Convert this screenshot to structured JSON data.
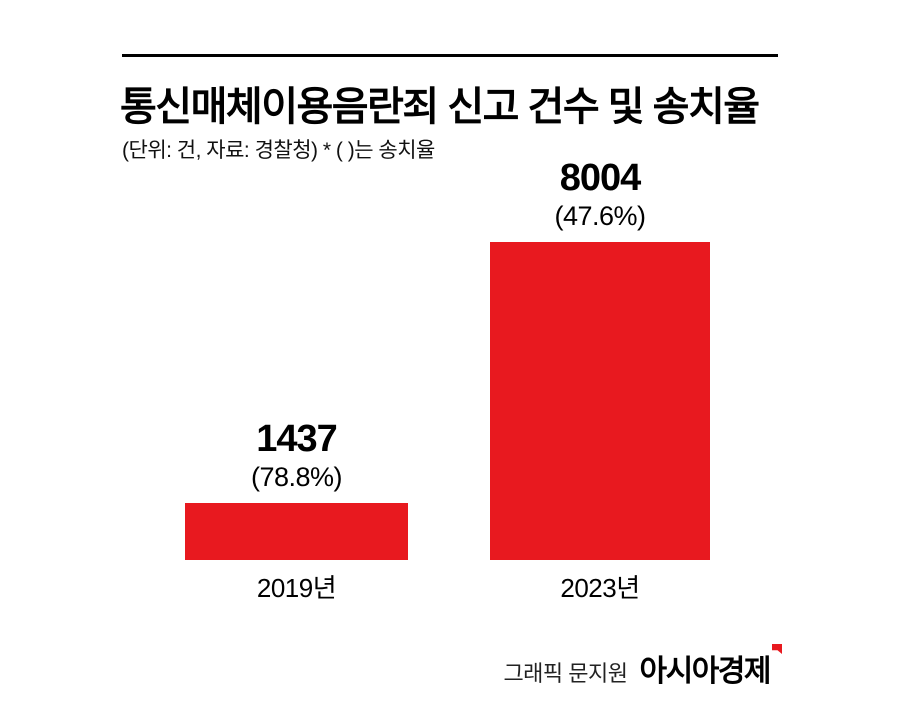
{
  "header": {
    "title": "통신매체이용음란죄 신고 건수 및 송치율",
    "subtitle": "(단위: 건, 자료: 경찰청)  * ( )는 송치율"
  },
  "chart_data": {
    "type": "bar",
    "title": "통신매체이용음란죄 신고 건수 및 송치율",
    "unit_note": "(단위: 건, 자료: 경찰청)  * ( )는 송치율",
    "categories": [
      "2019년",
      "2023년"
    ],
    "values": [
      1437,
      8004
    ],
    "rates": [
      "(78.8%)",
      "(47.6%)"
    ],
    "ylim": [
      0,
      8004
    ],
    "bar_color": "#e8191f",
    "grid": false,
    "legend": false
  },
  "footer": {
    "credit": "그래픽 문지원",
    "brand": "아시아경제"
  },
  "colors": {
    "accent_red": "#e8191f",
    "text": "#000000",
    "background": "#ffffff"
  }
}
